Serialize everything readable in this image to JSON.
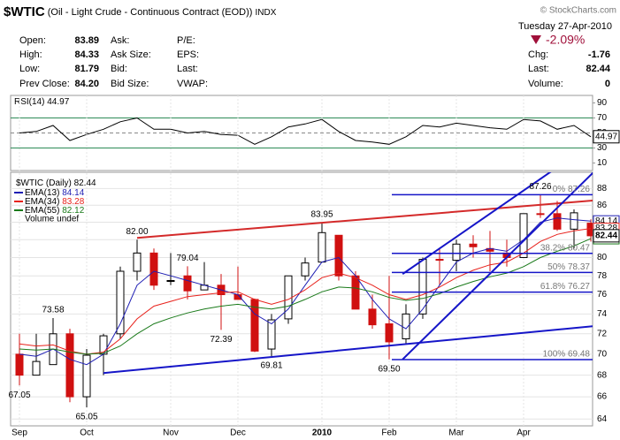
{
  "header": {
    "symbol": "$WTIC",
    "description": "(Oil - Light Crude - Continuous Contract (EOD))",
    "exchange": "INDX",
    "copyright": "© StockCharts.com",
    "date": "Tuesday 27-Apr-2010",
    "change_pct": "-2.09%",
    "quote_labels": [
      [
        "Open:",
        "High:",
        "Low:",
        "Prev Close:"
      ],
      [
        "Ask:",
        "Ask Size:",
        "Bid:",
        "Bid Size:"
      ],
      [
        "P/E:",
        "EPS:",
        "Last:",
        "VWAP:"
      ]
    ],
    "quote_values": [
      "83.89",
      "84.33",
      "81.79",
      "84.20"
    ],
    "summary": [
      [
        "Chg:",
        "-1.76"
      ],
      [
        "Last:",
        "82.44"
      ],
      [
        "Volume:",
        "0"
      ]
    ]
  },
  "chart_data": [
    {
      "type": "line",
      "name": "RSI(14)",
      "color": "#000000",
      "values": [
        50,
        52,
        60,
        40,
        48,
        55,
        65,
        70,
        55,
        55,
        50,
        52,
        48,
        47,
        35,
        45,
        58,
        62,
        68,
        52,
        40,
        38,
        35,
        45,
        60,
        58,
        63,
        60,
        57,
        55,
        68,
        66,
        55,
        60,
        44.97
      ],
      "ylim": [
        0,
        100
      ],
      "yticks": [
        10,
        30,
        50,
        70,
        90
      ],
      "bands": [
        30,
        70
      ],
      "band_color": "#2e8b57",
      "midline": 50
    },
    {
      "type": "candlestick",
      "name": "$WTIC (Daily)",
      "volume_note": "Volume undef",
      "categories": [
        "Sep",
        null,
        null,
        null,
        "Oct",
        null,
        null,
        null,
        null,
        "Nov",
        null,
        null,
        null,
        "Dec",
        null,
        null,
        null,
        null,
        "2010",
        null,
        null,
        null,
        "Feb",
        null,
        null,
        null,
        "Mar",
        null,
        null,
        null,
        "Apr",
        null,
        null,
        null,
        null
      ],
      "open": [
        70,
        68,
        69,
        72,
        66,
        70,
        72,
        78.5,
        80.5,
        77.5,
        78,
        76.5,
        77,
        76,
        75.5,
        70.5,
        73.5,
        78,
        79.5,
        82.5,
        78,
        74.5,
        73,
        71.5,
        74,
        79.8,
        79.7,
        81.5,
        81,
        80.5,
        80,
        85,
        85,
        83.2,
        83.89
      ],
      "high": [
        72,
        72,
        73.58,
        72.5,
        70.5,
        72,
        79,
        82,
        81,
        80.5,
        79.04,
        79.5,
        78.2,
        79,
        75.6,
        74,
        78,
        80,
        83.95,
        82.5,
        78.5,
        76,
        78,
        75,
        80,
        81,
        82,
        82.5,
        83,
        82,
        85,
        87.26,
        86.5,
        85.5,
        84.33
      ],
      "low": [
        67.05,
        68,
        69,
        65.5,
        65.05,
        68,
        71.5,
        77.5,
        76.5,
        77,
        75.5,
        76.5,
        72.39,
        75.5,
        70.2,
        69.81,
        73,
        77.5,
        79.5,
        77.5,
        74.5,
        72.5,
        69.5,
        71,
        73.5,
        77,
        78.5,
        80,
        78.5,
        79,
        80,
        84.5,
        83,
        81,
        81.79
      ],
      "close": [
        68,
        69.3,
        72,
        66,
        69.9,
        71.8,
        78.5,
        80.5,
        77,
        77.5,
        76.4,
        77,
        76,
        75.5,
        70.3,
        73.4,
        78,
        79.4,
        82.8,
        78,
        74.5,
        72.9,
        71.2,
        74,
        79.8,
        79.7,
        81.5,
        81.2,
        80.7,
        80,
        85,
        84.9,
        83.2,
        85.1,
        82.44
      ],
      "series": [
        {
          "name": "EMA(13)",
          "color": "#1f1fb4",
          "values": [
            70,
            69.8,
            70.5,
            69.5,
            69,
            70,
            73,
            77,
            78.5,
            78,
            77.5,
            77,
            76.5,
            76,
            74,
            73,
            74.5,
            77,
            79.5,
            80,
            78,
            75.5,
            73.5,
            72.5,
            74.5,
            77,
            79.5,
            80.5,
            81,
            80.7,
            82,
            84,
            84.5,
            84.3,
            84.14
          ]
        },
        {
          "name": "EMA(34)",
          "color": "#e8221c",
          "values": [
            71,
            70.8,
            70.9,
            70.3,
            70,
            70.2,
            71.5,
            73.5,
            74.8,
            75.3,
            75.8,
            76,
            76.2,
            76.3,
            75.5,
            75,
            75.5,
            76.5,
            77.8,
            78.3,
            77.8,
            77,
            76,
            75.5,
            76,
            76.8,
            77.8,
            78.6,
            79.2,
            79.5,
            80.5,
            81.8,
            82.6,
            83,
            83.28
          ]
        },
        {
          "name": "EMA(55)",
          "color": "#1a7a1a",
          "values": [
            70.5,
            70.4,
            70.5,
            70.2,
            70,
            70.1,
            70.8,
            72,
            73,
            73.6,
            74.1,
            74.5,
            74.8,
            75,
            74.7,
            74.5,
            74.8,
            75.5,
            76.3,
            76.8,
            76.7,
            76.3,
            75.7,
            75.4,
            75.6,
            76.1,
            76.8,
            77.4,
            77.9,
            78.3,
            79,
            80,
            80.7,
            81.3,
            82.12
          ]
        }
      ],
      "log": true,
      "ylim": [
        63.4,
        90
      ],
      "yticks": [
        64,
        66,
        68,
        70,
        72,
        74,
        76,
        78,
        80,
        82,
        84,
        86,
        88
      ],
      "grid": true,
      "annotations": [
        {
          "label": "67.05",
          "value": 67.05,
          "index": 0,
          "pos": "below"
        },
        {
          "label": "73.58",
          "value": 73.58,
          "index": 2,
          "pos": "above"
        },
        {
          "label": "65.05",
          "value": 65.05,
          "index": 4,
          "pos": "below"
        },
        {
          "label": "82.00",
          "value": 82,
          "index": 7,
          "pos": "above"
        },
        {
          "label": "79.04",
          "value": 79.04,
          "index": 10,
          "pos": "above"
        },
        {
          "label": "72.39",
          "value": 72.39,
          "index": 12,
          "pos": "below"
        },
        {
          "label": "69.81",
          "value": 69.81,
          "index": 15,
          "pos": "below"
        },
        {
          "label": "83.95",
          "value": 83.95,
          "index": 18,
          "pos": "above"
        },
        {
          "label": "69.50",
          "value": 69.5,
          "index": 22,
          "pos": "below"
        },
        {
          "label": "87.26",
          "value": 87.26,
          "index": 31,
          "pos": "above"
        }
      ],
      "fib_levels": [
        {
          "value": 87.26,
          "label": "0% 87.26"
        },
        {
          "value": 80.47,
          "label": "38.2% 80.47"
        },
        {
          "value": 78.37,
          "label": "50% 78.37"
        },
        {
          "value": 76.27,
          "label": "61.8% 76.27"
        },
        {
          "value": 69.48,
          "label": "100% 69.48"
        }
      ],
      "fib_color": "#1515c8",
      "trendlines": [
        {
          "color": "#d42a2a",
          "points": [
            [
              7,
              82.2
            ],
            [
              35.6,
              86.8
            ]
          ]
        },
        {
          "color": "#1515c8",
          "points": [
            [
              5,
              68.2
            ],
            [
              35.6,
              73
            ]
          ]
        },
        {
          "color": "#1515c8",
          "points": [
            [
              22.8,
              78.2
            ],
            [
              35.6,
              96
            ]
          ]
        },
        {
          "color": "#1515c8",
          "points": [
            [
              22.8,
              69.5
            ],
            [
              35.6,
              93
            ]
          ]
        }
      ]
    }
  ]
}
